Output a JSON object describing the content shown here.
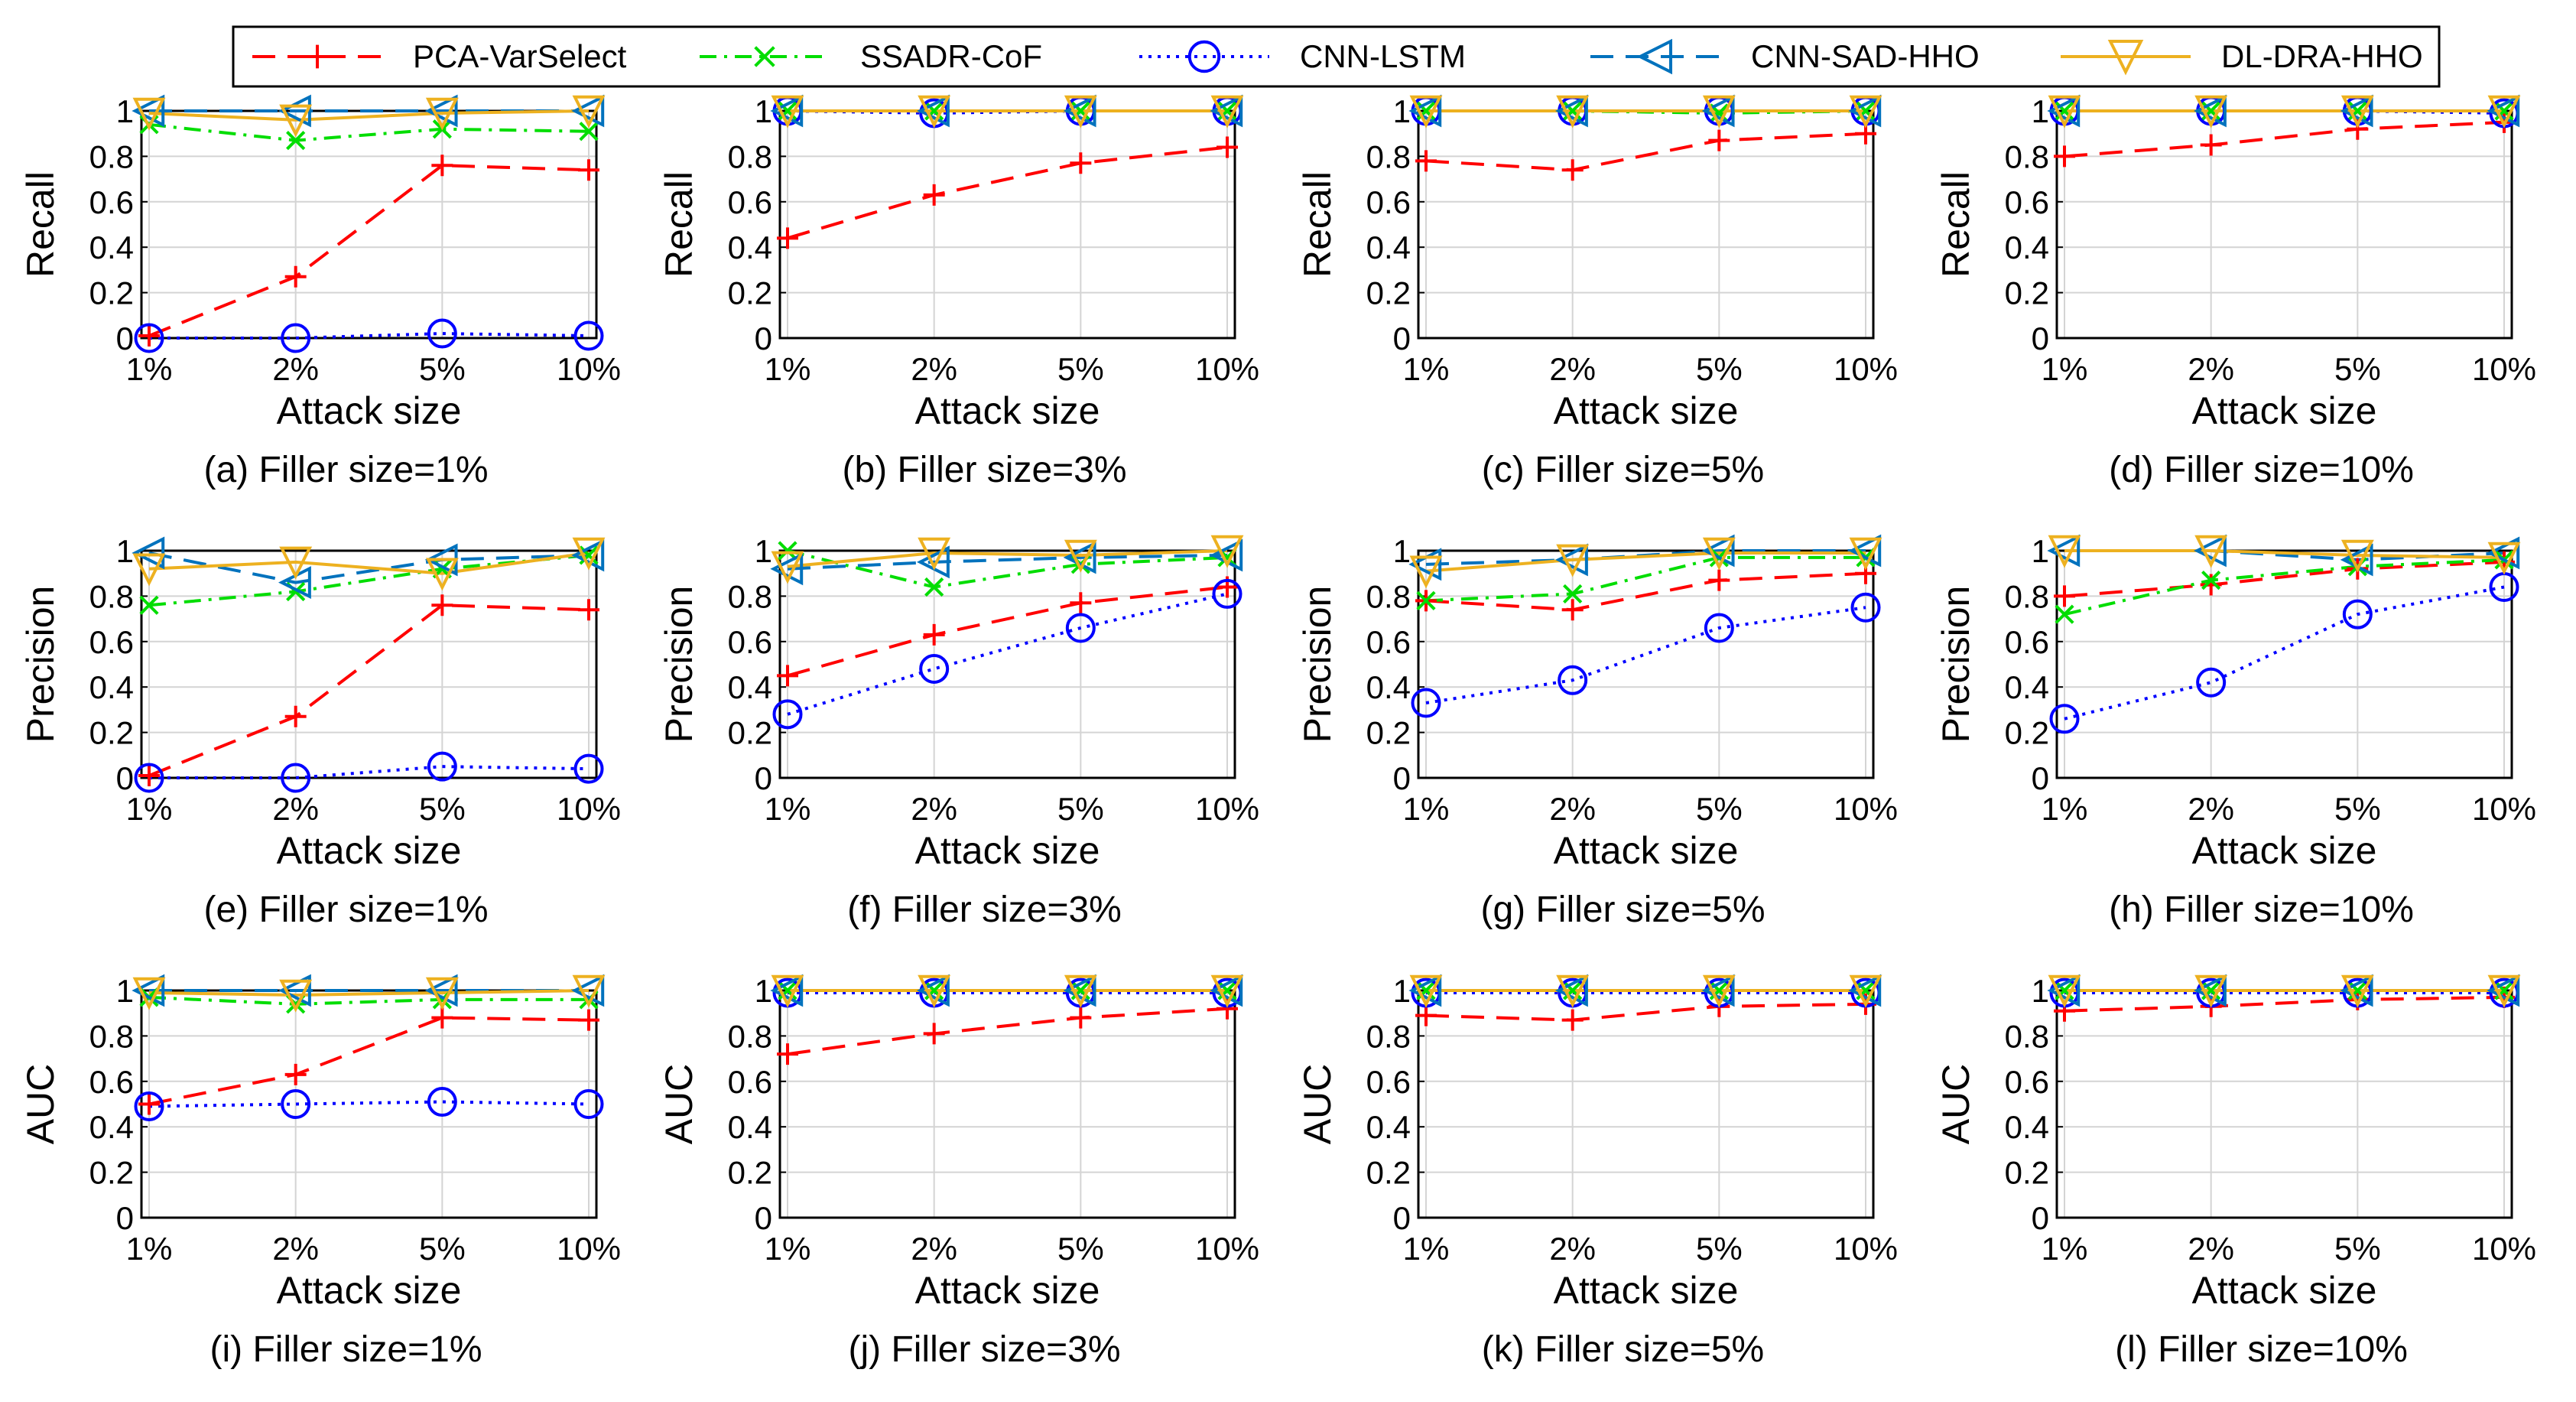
{
  "chart_data": {
    "type": "line",
    "categories": [
      "1%",
      "2%",
      "5%",
      "10%"
    ],
    "xlabel": "Attack size",
    "ylim": [
      0,
      1
    ],
    "yticks": [
      "0",
      "0.2",
      "0.4",
      "0.6",
      "0.8",
      "1"
    ],
    "legend": {
      "placement": "top",
      "entries": [
        {
          "name": "PCA-VarSelect",
          "color": "#ff0000",
          "dash": "long-dash",
          "marker": "plus"
        },
        {
          "name": "SSADR-CoF",
          "color": "#00dd00",
          "dash": "dash-dot",
          "marker": "x"
        },
        {
          "name": "CNN-LSTM",
          "color": "#0000ff",
          "dash": "dotted",
          "marker": "circle"
        },
        {
          "name": "CNN-SAD-HHO",
          "color": "#0072bd",
          "dash": "long-dash",
          "marker": "triangle-left"
        },
        {
          "name": "DL-DRA-HHO",
          "color": "#edb120",
          "dash": "solid",
          "marker": "triangle-down"
        }
      ]
    },
    "panels": [
      {
        "caption": "(a) Filler size=1%",
        "ylabel": "Recall",
        "series": [
          {
            "name": "PCA-VarSelect",
            "values": [
              0.01,
              0.27,
              0.76,
              0.74
            ]
          },
          {
            "name": "SSADR-CoF",
            "values": [
              0.94,
              0.87,
              0.92,
              0.91
            ]
          },
          {
            "name": "CNN-LSTM",
            "values": [
              0.0,
              0.0,
              0.02,
              0.01
            ]
          },
          {
            "name": "CNN-SAD-HHO",
            "values": [
              1.0,
              1.0,
              1.0,
              1.0
            ]
          },
          {
            "name": "DL-DRA-HHO",
            "values": [
              0.99,
              0.96,
              0.99,
              1.0
            ]
          }
        ]
      },
      {
        "caption": "(b) Filler size=3%",
        "ylabel": "Recall",
        "series": [
          {
            "name": "PCA-VarSelect",
            "values": [
              0.44,
              0.63,
              0.77,
              0.84
            ]
          },
          {
            "name": "SSADR-CoF",
            "values": [
              1.0,
              1.0,
              1.0,
              1.0
            ]
          },
          {
            "name": "CNN-LSTM",
            "values": [
              1.0,
              0.99,
              1.0,
              1.0
            ]
          },
          {
            "name": "CNN-SAD-HHO",
            "values": [
              1.0,
              1.0,
              1.0,
              1.0
            ]
          },
          {
            "name": "DL-DRA-HHO",
            "values": [
              1.0,
              1.0,
              1.0,
              1.0
            ]
          }
        ]
      },
      {
        "caption": "(c) Filler size=5%",
        "ylabel": "Recall",
        "series": [
          {
            "name": "PCA-VarSelect",
            "values": [
              0.78,
              0.74,
              0.87,
              0.9
            ]
          },
          {
            "name": "SSADR-CoF",
            "values": [
              1.0,
              1.0,
              0.99,
              1.0
            ]
          },
          {
            "name": "CNN-LSTM",
            "values": [
              1.0,
              1.0,
              1.0,
              1.0
            ]
          },
          {
            "name": "CNN-SAD-HHO",
            "values": [
              1.0,
              1.0,
              1.0,
              1.0
            ]
          },
          {
            "name": "DL-DRA-HHO",
            "values": [
              1.0,
              1.0,
              1.0,
              1.0
            ]
          }
        ]
      },
      {
        "caption": "(d) Filler size=10%",
        "ylabel": "Recall",
        "series": [
          {
            "name": "PCA-VarSelect",
            "values": [
              0.8,
              0.85,
              0.92,
              0.95
            ]
          },
          {
            "name": "SSADR-CoF",
            "values": [
              1.0,
              1.0,
              1.0,
              1.0
            ]
          },
          {
            "name": "CNN-LSTM",
            "values": [
              1.0,
              1.0,
              1.0,
              0.99
            ]
          },
          {
            "name": "CNN-SAD-HHO",
            "values": [
              1.0,
              1.0,
              1.0,
              1.0
            ]
          },
          {
            "name": "DL-DRA-HHO",
            "values": [
              1.0,
              1.0,
              1.0,
              1.0
            ]
          }
        ]
      },
      {
        "caption": "(e) Filler size=1%",
        "ylabel": "Precision",
        "series": [
          {
            "name": "PCA-VarSelect",
            "values": [
              0.01,
              0.27,
              0.76,
              0.74
            ]
          },
          {
            "name": "SSADR-CoF",
            "values": [
              0.76,
              0.82,
              0.92,
              0.98
            ]
          },
          {
            "name": "CNN-LSTM",
            "values": [
              0.0,
              0.0,
              0.05,
              0.04
            ]
          },
          {
            "name": "CNN-SAD-HHO",
            "values": [
              0.99,
              0.86,
              0.96,
              0.98
            ]
          },
          {
            "name": "DL-DRA-HHO",
            "values": [
              0.92,
              0.95,
              0.9,
              0.99
            ]
          }
        ]
      },
      {
        "caption": "(f) Filler size=3%",
        "ylabel": "Precision",
        "series": [
          {
            "name": "PCA-VarSelect",
            "values": [
              0.45,
              0.63,
              0.77,
              0.84
            ]
          },
          {
            "name": "SSADR-CoF",
            "values": [
              1.0,
              0.84,
              0.94,
              0.97
            ]
          },
          {
            "name": "CNN-LSTM",
            "values": [
              0.28,
              0.48,
              0.66,
              0.81
            ]
          },
          {
            "name": "CNN-SAD-HHO",
            "values": [
              0.92,
              0.95,
              0.97,
              0.98
            ]
          },
          {
            "name": "DL-DRA-HHO",
            "values": [
              0.93,
              0.99,
              0.98,
              1.0
            ]
          }
        ]
      },
      {
        "caption": "(g) Filler size=5%",
        "ylabel": "Precision",
        "series": [
          {
            "name": "PCA-VarSelect",
            "values": [
              0.78,
              0.74,
              0.87,
              0.9
            ]
          },
          {
            "name": "SSADR-CoF",
            "values": [
              0.78,
              0.81,
              0.97,
              0.97
            ]
          },
          {
            "name": "CNN-LSTM",
            "values": [
              0.33,
              0.43,
              0.66,
              0.75
            ]
          },
          {
            "name": "CNN-SAD-HHO",
            "values": [
              0.94,
              0.96,
              1.0,
              1.0
            ]
          },
          {
            "name": "DL-DRA-HHO",
            "values": [
              0.91,
              0.96,
              0.99,
              0.99
            ]
          }
        ]
      },
      {
        "caption": "(h) Filler size=10%",
        "ylabel": "Precision",
        "series": [
          {
            "name": "PCA-VarSelect",
            "values": [
              0.8,
              0.85,
              0.92,
              0.95
            ]
          },
          {
            "name": "SSADR-CoF",
            "values": [
              0.72,
              0.87,
              0.93,
              0.96
            ]
          },
          {
            "name": "CNN-LSTM",
            "values": [
              0.26,
              0.42,
              0.72,
              0.84
            ]
          },
          {
            "name": "CNN-SAD-HHO",
            "values": [
              1.0,
              1.0,
              0.96,
              0.99
            ]
          },
          {
            "name": "DL-DRA-HHO",
            "values": [
              1.0,
              1.0,
              0.98,
              0.97
            ]
          }
        ]
      },
      {
        "caption": "(i) Filler size=1%",
        "ylabel": "AUC",
        "series": [
          {
            "name": "PCA-VarSelect",
            "values": [
              0.5,
              0.63,
              0.88,
              0.87
            ]
          },
          {
            "name": "SSADR-CoF",
            "values": [
              0.97,
              0.94,
              0.96,
              0.96
            ]
          },
          {
            "name": "CNN-LSTM",
            "values": [
              0.49,
              0.5,
              0.51,
              0.5
            ]
          },
          {
            "name": "CNN-SAD-HHO",
            "values": [
              1.0,
              1.0,
              1.0,
              1.0
            ]
          },
          {
            "name": "DL-DRA-HHO",
            "values": [
              0.99,
              0.98,
              0.99,
              1.0
            ]
          }
        ]
      },
      {
        "caption": "(j) Filler size=3%",
        "ylabel": "AUC",
        "series": [
          {
            "name": "PCA-VarSelect",
            "values": [
              0.72,
              0.81,
              0.88,
              0.92
            ]
          },
          {
            "name": "SSADR-CoF",
            "values": [
              1.0,
              1.0,
              1.0,
              1.0
            ]
          },
          {
            "name": "CNN-LSTM",
            "values": [
              0.99,
              0.99,
              0.99,
              0.99
            ]
          },
          {
            "name": "CNN-SAD-HHO",
            "values": [
              1.0,
              1.0,
              1.0,
              1.0
            ]
          },
          {
            "name": "DL-DRA-HHO",
            "values": [
              1.0,
              1.0,
              1.0,
              1.0
            ]
          }
        ]
      },
      {
        "caption": "(k) Filler size=5%",
        "ylabel": "AUC",
        "series": [
          {
            "name": "PCA-VarSelect",
            "values": [
              0.89,
              0.87,
              0.93,
              0.94
            ]
          },
          {
            "name": "SSADR-CoF",
            "values": [
              1.0,
              1.0,
              1.0,
              1.0
            ]
          },
          {
            "name": "CNN-LSTM",
            "values": [
              0.99,
              0.99,
              0.99,
              0.99
            ]
          },
          {
            "name": "CNN-SAD-HHO",
            "values": [
              1.0,
              1.0,
              1.0,
              1.0
            ]
          },
          {
            "name": "DL-DRA-HHO",
            "values": [
              1.0,
              1.0,
              1.0,
              1.0
            ]
          }
        ]
      },
      {
        "caption": "(l) Filler size=10%",
        "ylabel": "AUC",
        "series": [
          {
            "name": "PCA-VarSelect",
            "values": [
              0.91,
              0.93,
              0.96,
              0.97
            ]
          },
          {
            "name": "SSADR-CoF",
            "values": [
              1.0,
              1.0,
              1.0,
              1.0
            ]
          },
          {
            "name": "CNN-LSTM",
            "values": [
              0.99,
              0.99,
              0.99,
              0.99
            ]
          },
          {
            "name": "CNN-SAD-HHO",
            "values": [
              1.0,
              1.0,
              1.0,
              1.0
            ]
          },
          {
            "name": "DL-DRA-HHO",
            "values": [
              1.0,
              1.0,
              1.0,
              1.0
            ]
          }
        ]
      }
    ]
  }
}
